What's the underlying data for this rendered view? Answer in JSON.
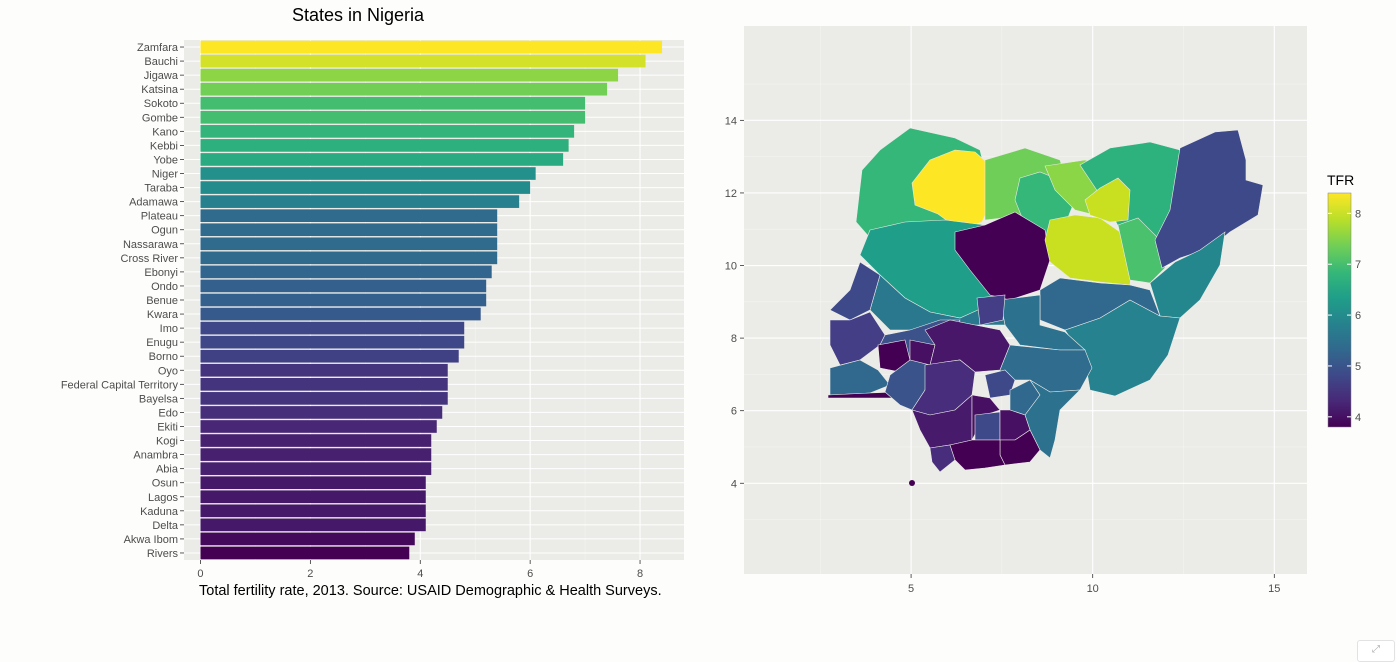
{
  "chart_data": [
    {
      "type": "bar",
      "orientation": "horizontal",
      "title": "States in Nigeria",
      "caption": "Total fertility rate, 2013. Source: USAID Demographic & Health Surveys.",
      "xlabel": "",
      "ylabel": "",
      "xlim": [
        -0.3,
        8.8
      ],
      "xticks": [
        0,
        2,
        4,
        6,
        8
      ],
      "grid": true,
      "categories": [
        "Zamfara",
        "Bauchi",
        "Jigawa",
        "Katsina",
        "Sokoto",
        "Gombe",
        "Kano",
        "Kebbi",
        "Yobe",
        "Niger",
        "Taraba",
        "Adamawa",
        "Plateau",
        "Ogun",
        "Nassarawa",
        "Cross River",
        "Ebonyi",
        "Ondo",
        "Benue",
        "Kwara",
        "Imo",
        "Enugu",
        "Borno",
        "Oyo",
        "Federal Capital Territory",
        "Bayelsa",
        "Edo",
        "Ekiti",
        "Kogi",
        "Anambra",
        "Abia",
        "Osun",
        "Lagos",
        "Kaduna",
        "Delta",
        "Akwa Ibom",
        "Rivers"
      ],
      "values": [
        8.4,
        8.1,
        7.6,
        7.4,
        7.0,
        7.0,
        6.8,
        6.7,
        6.6,
        6.1,
        6.0,
        5.8,
        5.4,
        5.4,
        5.4,
        5.4,
        5.3,
        5.2,
        5.2,
        5.1,
        4.8,
        4.8,
        4.7,
        4.5,
        4.5,
        4.5,
        4.4,
        4.3,
        4.2,
        4.2,
        4.2,
        4.1,
        4.1,
        4.1,
        4.1,
        3.9,
        3.8
      ]
    },
    {
      "type": "choropleth",
      "xlim": [
        0.4,
        15.9
      ],
      "ylim": [
        1.5,
        16.6
      ],
      "xticks": [
        5,
        10,
        15
      ],
      "yticks": [
        4,
        6,
        8,
        10,
        12,
        14
      ],
      "legend": {
        "title": "TFR",
        "position": "right",
        "range": [
          3.8,
          8.4
        ],
        "ticks": [
          4,
          5,
          6,
          7,
          8
        ]
      }
    }
  ],
  "colors": {
    "panel_background": "#ebebe7",
    "grid": "#ffffff",
    "axis_text": "#4d4d4d",
    "viridis": [
      "#440154",
      "#482878",
      "#3e4989",
      "#31688e",
      "#26828e",
      "#1f9e89",
      "#35b779",
      "#6ece58",
      "#b5de2b",
      "#fde725"
    ]
  },
  "widget": {
    "icon": "resize-handle-icon"
  }
}
